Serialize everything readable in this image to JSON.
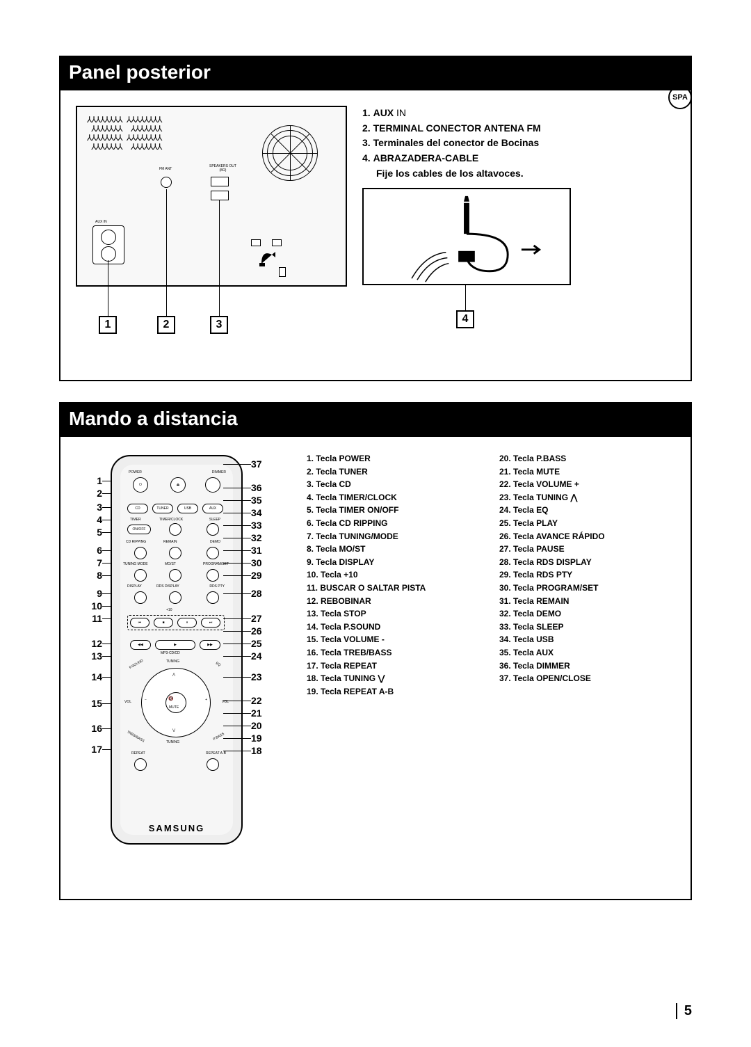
{
  "lang_badge": "SPA",
  "page_number": "5",
  "section1": {
    "title": "Panel posterior",
    "callouts": [
      "1",
      "2",
      "3",
      "4"
    ],
    "items": [
      {
        "num": "1.",
        "bold": "AUX",
        "rest": " IN"
      },
      {
        "num": "2.",
        "bold": "TERMINAL CONECTOR ANTENA FM",
        "rest": ""
      },
      {
        "num": "3.",
        "bold": "Terminales del conector de Bocinas",
        "rest": ""
      },
      {
        "num": "4.",
        "bold": "ABRAZADERA-CABLE",
        "rest": ""
      }
    ],
    "item4_sub": "Fije los cables de los altavoces.",
    "dev_labels": {
      "fm": "FM ANT",
      "spk": "SPEAKERS OUT\n(8Ω)",
      "aux": "AUX IN"
    }
  },
  "section2": {
    "title": "Mando a distancia",
    "brand": "SAMSUNG",
    "left_nums": [
      "1",
      "2",
      "3",
      "4",
      "5",
      "6",
      "7",
      "8",
      "9",
      "10",
      "11",
      "12",
      "13",
      "14",
      "15",
      "16",
      "17"
    ],
    "right_nums": [
      "37",
      "36",
      "35",
      "34",
      "33",
      "32",
      "31",
      "30",
      "29",
      "28",
      "27",
      "26",
      "25",
      "24",
      "23",
      "22",
      "21",
      "20",
      "19",
      "18"
    ],
    "left_gaps": {
      "0": 32,
      "2": 2,
      "5": 8,
      "8": 8,
      "11": 18,
      "13": 12,
      "14": 20,
      "15": 18,
      "16": 12
    },
    "right_gaps": {
      "0": 8,
      "1": 16,
      "4": 0,
      "9": 8,
      "10": 18,
      "13": 0,
      "14": 12,
      "15": 16,
      "18": 0
    },
    "btn_labels": {
      "power": "POWER",
      "dimmer": "DIMMER",
      "cd": "CD",
      "tuner": "TUNER",
      "usb": "USB",
      "aux": "AUX",
      "timer": "TIMER",
      "timerclock": "TIMER/CLOCK",
      "sleep": "SLEEP",
      "onoff": "ON/OFF",
      "cdrip": "CD RIPPING",
      "remain": "REMAIN",
      "demo": "DEMO",
      "tmode": "TUNING MODE",
      "most": "MO/ST",
      "progset": "PROGRAM/SET",
      "display": "DISPLAY",
      "rdsdisp": "RDS DISPLAY",
      "rdspty": "RDS PTY",
      "mp3": "MP3-CD/CD",
      "psound": "P.SOUND",
      "tuning": "TUNING",
      "eq": "EQ",
      "vol": "VOL",
      "mute": "MUTE",
      "treb": "TREB/BASS",
      "pbass": "P.BASS",
      "repeat": "REPEAT",
      "repab": "REPEAT A-B",
      "plus10": "+10"
    },
    "list": [
      "1.  Tecla POWER",
      "2.  Tecla TUNER",
      "3.  Tecla CD",
      "4.  Tecla TIMER/CLOCK",
      "5.  Tecla TIMER ON/OFF",
      "6.  Tecla CD RIPPING",
      "7.  Tecla TUNING/MODE",
      "8.  Tecla MO/ST",
      "9.  Tecla DISPLAY",
      "10. Tecla +10",
      "11. BUSCAR O SALTAR PISTA",
      "12. REBOBINAR",
      "13. Tecla STOP",
      "14. Tecla P.SOUND",
      "15. Tecla VOLUME -",
      "16. Tecla TREB/BASS",
      "17. Tecla REPEAT",
      "18. Tecla TUNING ⋁",
      "19. Tecla REPEAT A-B",
      "20. Tecla P.BASS",
      "21. Tecla MUTE",
      "22. Tecla VOLUME +",
      "23. Tecla TUNING ⋀",
      "24. Tecla EQ",
      "25. Tecla PLAY",
      "26. Tecla AVANCE RÁPIDO",
      "27. Tecla PAUSE",
      "28. Tecla RDS DISPLAY",
      "29. Tecla RDS PTY",
      "30. Tecla PROGRAM/SET",
      "31. Tecla REMAIN",
      "32. Tecla DEMO",
      "33. Tecla SLEEP",
      "34. Tecla USB",
      "35. Tecla AUX",
      "36. Tecla DIMMER",
      "37. Tecla OPEN/CLOSE"
    ]
  }
}
